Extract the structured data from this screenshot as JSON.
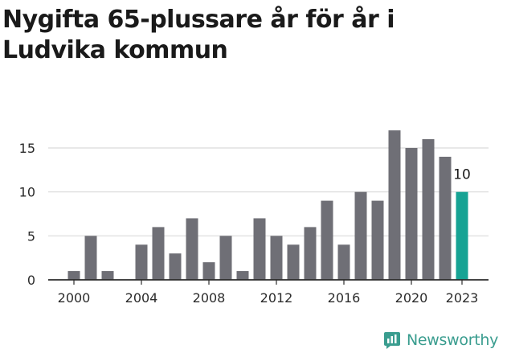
{
  "title": "Nygifta 65-plussare år för år i Ludvika kommun",
  "brand": {
    "name": "Newsworthy",
    "icon": "newsworthy-logo-icon",
    "color": "#3a9d8f"
  },
  "chart_data": {
    "type": "bar",
    "title": "Nygifta 65-plussare år för år i Ludvika kommun",
    "xlabel": "",
    "ylabel": "",
    "categories": [
      "2000",
      "2001",
      "2002",
      "2003",
      "2004",
      "2005",
      "2006",
      "2007",
      "2008",
      "2009",
      "2010",
      "2011",
      "2012",
      "2013",
      "2014",
      "2015",
      "2016",
      "2017",
      "2018",
      "2019",
      "2020",
      "2021",
      "2022",
      "2023"
    ],
    "values": [
      1,
      5,
      1,
      0,
      4,
      6,
      3,
      7,
      2,
      5,
      1,
      7,
      5,
      4,
      6,
      9,
      4,
      10,
      9,
      17,
      15,
      16,
      14,
      10
    ],
    "x_tick_labels": [
      "2000",
      "2004",
      "2008",
      "2012",
      "2016",
      "2020",
      "2023"
    ],
    "y_ticks": [
      0,
      5,
      10,
      15
    ],
    "ylim": [
      0,
      18
    ],
    "grid": true,
    "highlight": {
      "index": 23,
      "label": "10"
    },
    "colors": {
      "bar": "#6f6f76",
      "highlight": "#16a394",
      "grid": "#d9d9d9",
      "axis": "#2b2b2b"
    }
  }
}
